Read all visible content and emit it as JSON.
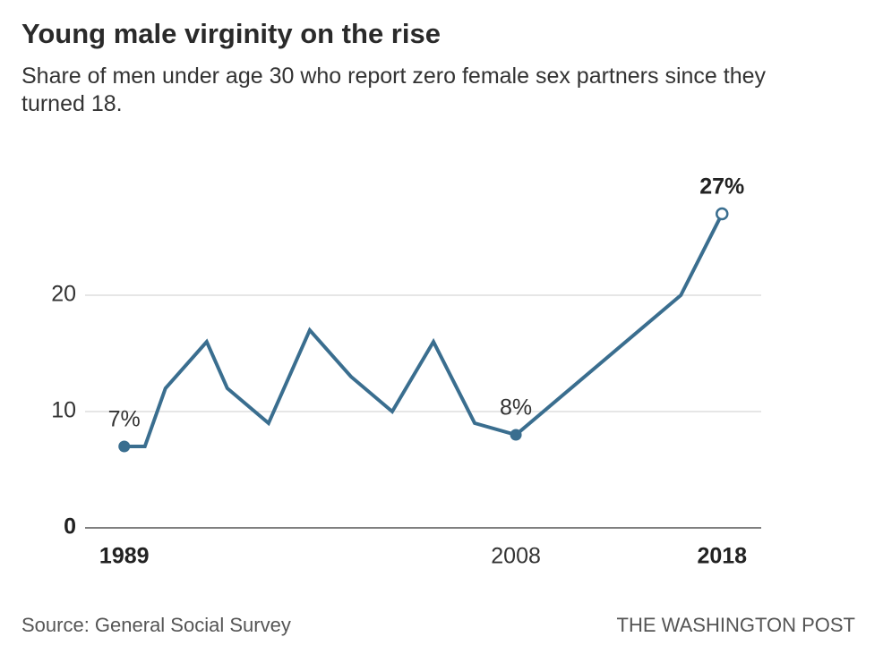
{
  "chart_data": {
    "type": "line",
    "title": "Young male virginity on the rise",
    "subtitle": "Share of men under age 30 who report zero female sex partners since they turned 18.",
    "x": [
      1989,
      1990,
      1991,
      1993,
      1994,
      1996,
      1998,
      2000,
      2002,
      2004,
      2006,
      2008,
      2016,
      2018
    ],
    "values": [
      7,
      7,
      12,
      16,
      12,
      9,
      17,
      13,
      10,
      16,
      9,
      8,
      20,
      27
    ],
    "value_labels": [
      "7%",
      null,
      null,
      null,
      null,
      null,
      null,
      null,
      null,
      null,
      null,
      "8%",
      null,
      "27%"
    ],
    "color": "#3a6e8f",
    "xlim": [
      1987.1,
      2019.9
    ],
    "ylim": [
      0,
      30
    ],
    "xticks": [
      1989,
      2008,
      2018
    ],
    "yticks": [
      0,
      10,
      20
    ],
    "grid": true,
    "source": "Source: General Social Survey",
    "publisher": "THE WASHINGTON POST"
  }
}
